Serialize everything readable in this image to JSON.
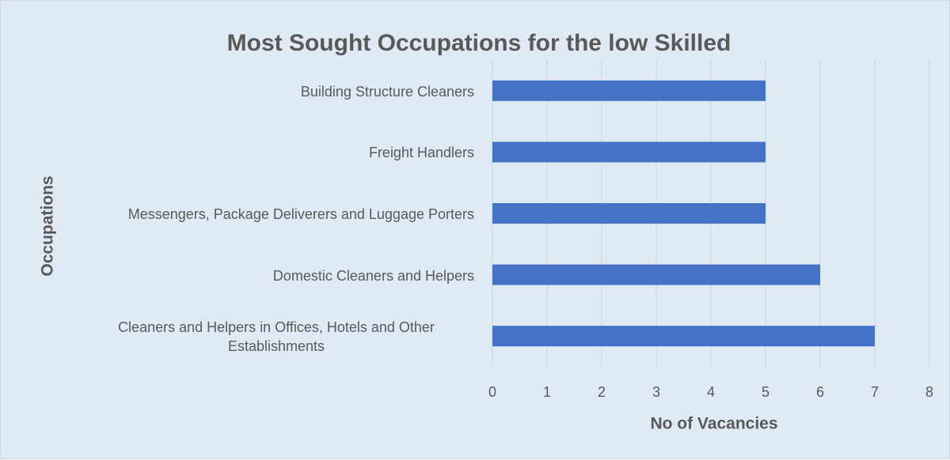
{
  "chart_data": {
    "type": "bar",
    "orientation": "horizontal",
    "title": "Most Sought Occupations for the low Skilled",
    "x_label": "No of Vacancies",
    "y_label": "Occupations",
    "categories": [
      "Building Structure Cleaners",
      "Freight Handlers",
      "Messengers, Package Deliverers and Luggage Porters",
      "Domestic Cleaners and Helpers",
      "Cleaners and Helpers in Offices, Hotels and Other Establishments"
    ],
    "values": [
      5,
      5,
      5,
      6,
      7
    ],
    "color": "#4472c4",
    "xlim": [
      0,
      8
    ],
    "xticks": [
      0,
      1,
      2,
      3,
      4,
      5,
      6,
      7,
      8
    ],
    "grid": true
  }
}
